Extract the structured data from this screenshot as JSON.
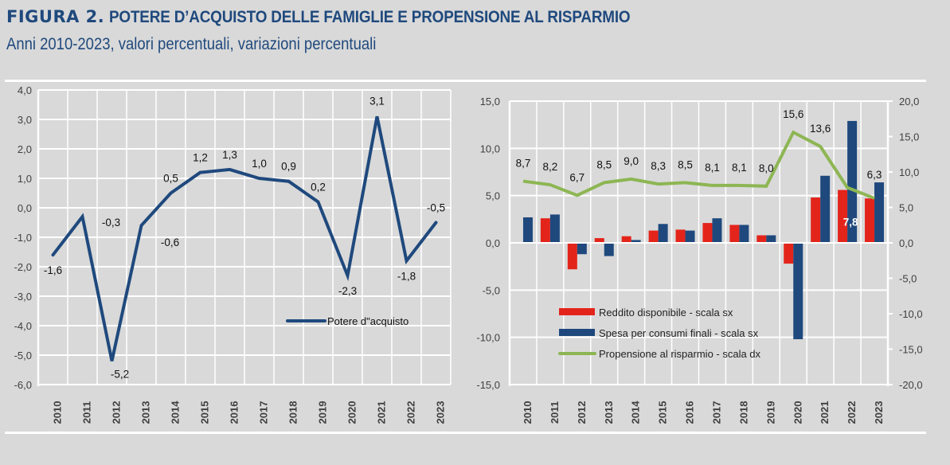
{
  "header": {
    "figure_label": "FIGURA 2.",
    "title": "POTERE D’ACQUISTO DELLE FAMIGLIE E PROPENSIONE AL RISPARMIO",
    "subtitle": "Anni 2010-2023, valori percentuali, variazioni percentuali"
  },
  "colors": {
    "title": "#1f497d",
    "background": "#d9d9d9",
    "grid": "#ffffff",
    "blue": "#1f497d",
    "red": "#e3241b",
    "green": "#8db653",
    "text": "#404040"
  },
  "chart_data": [
    {
      "type": "line",
      "title": "",
      "xlabel": "",
      "ylabel": "",
      "categories": [
        "2010",
        "2011",
        "2012",
        "2013",
        "2014",
        "2015",
        "2016",
        "2017",
        "2018",
        "2019",
        "2020",
        "2021",
        "2022",
        "2023"
      ],
      "ylim": [
        -6,
        4
      ],
      "yticks": [
        "4,0",
        "3,0",
        "2,0",
        "1,0",
        "0,0",
        "-1,0",
        "-2,0",
        "-3,0",
        "-4,0",
        "-5,0",
        "-6,0"
      ],
      "grid": true,
      "legend_position": "bottom-right",
      "series": [
        {
          "name": "Potere d\"acquisto",
          "values": [
            -1.6,
            -0.3,
            -5.2,
            -0.6,
            0.5,
            1.2,
            1.3,
            1.0,
            0.9,
            0.2,
            -2.3,
            3.1,
            -1.8,
            -0.5
          ],
          "labels": [
            "-1,6",
            "-0,3",
            "-5,2",
            "-0,6",
            "0,5",
            "1,2",
            "1,3",
            "1,0",
            "0,9",
            "0,2",
            "-2,3",
            "3,1",
            "-1,8",
            "-0,5"
          ]
        }
      ]
    },
    {
      "type": "bar",
      "title": "",
      "xlabel": "",
      "ylabel": "",
      "categories": [
        "2010",
        "2011",
        "2012",
        "2013",
        "2014",
        "2015",
        "2016",
        "2017",
        "2018",
        "2019",
        "2020",
        "2021",
        "2022",
        "2023"
      ],
      "ylim": [
        -15,
        15
      ],
      "yticks_left": [
        "15,0",
        "10,0",
        "5,0",
        "0,0",
        "-5,0",
        "-10,0",
        "-15,0"
      ],
      "y2lim": [
        -20,
        20
      ],
      "yticks_right": [
        "20,0",
        "15,0",
        "10,0",
        "5,0",
        "0,0",
        "-5,0",
        "-10,0",
        "-15,0",
        "-20,0"
      ],
      "grid": true,
      "legend_position": "bottom-center",
      "series": [
        {
          "name": "Reddito disponibile - scala sx",
          "type": "bar",
          "axis": "left",
          "values": [
            0.0,
            2.6,
            -2.8,
            0.5,
            0.7,
            1.3,
            1.4,
            2.1,
            1.9,
            0.8,
            -2.2,
            4.8,
            5.6,
            4.7
          ]
        },
        {
          "name": "Spesa per consumi finali - scala sx",
          "type": "bar",
          "axis": "left",
          "values": [
            2.7,
            3.0,
            -1.2,
            -1.4,
            0.3,
            2.0,
            1.3,
            2.6,
            1.9,
            0.8,
            -10.2,
            7.1,
            12.9,
            6.4
          ]
        },
        {
          "name": "Propensione al risparmio - scala dx",
          "type": "line",
          "axis": "right",
          "values": [
            8.7,
            8.2,
            6.7,
            8.5,
            9.0,
            8.3,
            8.5,
            8.1,
            8.1,
            8.0,
            15.6,
            13.6,
            7.8,
            6.3
          ],
          "labels": [
            "8,7",
            "8,2",
            "6,7",
            "8,5",
            "9,0",
            "8,3",
            "8,5",
            "8,1",
            "8,1",
            "8,0",
            "15,6",
            "13,6",
            "7,8",
            "6,3"
          ]
        }
      ]
    }
  ]
}
